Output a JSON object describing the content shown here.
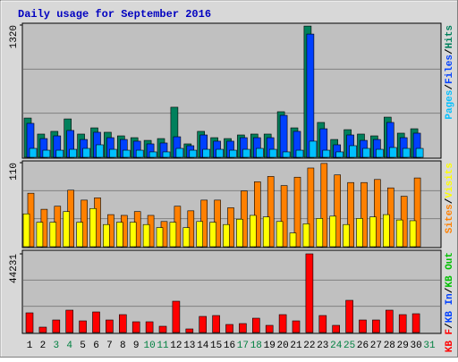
{
  "chart_data": [
    {
      "type": "bar",
      "title": "Daily usage for September 2016",
      "categories": [
        "1",
        "2",
        "3",
        "4",
        "5",
        "6",
        "7",
        "8",
        "9",
        "10",
        "11",
        "12",
        "13",
        "14",
        "15",
        "16",
        "17",
        "18",
        "19",
        "20",
        "21",
        "22",
        "23",
        "24",
        "25",
        "26",
        "27",
        "28",
        "29",
        "30",
        "31"
      ],
      "category_colors": [
        "#000000",
        "#000000",
        "#008040",
        "#008040",
        "#000000",
        "#000000",
        "#000000",
        "#000000",
        "#000000",
        "#008040",
        "#008040",
        "#000000",
        "#000000",
        "#000000",
        "#000000",
        "#000000",
        "#008040",
        "#008040",
        "#000000",
        "#000000",
        "#000000",
        "#000000",
        "#000000",
        "#008040",
        "#008040",
        "#000000",
        "#000000",
        "#000000",
        "#000000",
        "#000000",
        "#008040"
      ],
      "legend_separator": "/",
      "ylim": [
        0,
        1320
      ],
      "yticks": [
        1320
      ],
      "series": [
        {
          "name": "Hits",
          "color": "#00805c",
          "values": [
            392,
            232,
            259,
            383,
            232,
            294,
            250,
            214,
            196,
            169,
            187,
            500,
            134,
            259,
            196,
            187,
            223,
            232,
            232,
            455,
            294,
            1310,
            348,
            178,
            276,
            232,
            214,
            401,
            241,
            285,
            null
          ]
        },
        {
          "name": "Files",
          "color": "#0040ff",
          "values": [
            339,
            187,
            214,
            268,
            178,
            250,
            196,
            178,
            161,
            134,
            143,
            205,
            116,
            223,
            161,
            161,
            196,
            196,
            196,
            419,
            259,
            1230,
            285,
            125,
            223,
            169,
            178,
            348,
            196,
            241,
            null
          ]
        },
        {
          "name": "Pages",
          "color": "#00c0ff",
          "values": [
            89,
            71,
            71,
            80,
            89,
            125,
            80,
            71,
            71,
            54,
            54,
            89,
            71,
            80,
            80,
            71,
            80,
            89,
            80,
            54,
            71,
            161,
            71,
            54,
            116,
            89,
            80,
            98,
            89,
            89,
            null
          ]
        }
      ]
    },
    {
      "type": "bar",
      "ylim": [
        0,
        110
      ],
      "yticks": [
        110
      ],
      "series": [
        {
          "name": "Visits",
          "color": "#ffff00",
          "values": [
            43,
            32,
            32,
            46,
            32,
            50,
            29,
            32,
            32,
            29,
            25,
            32,
            25,
            33,
            32,
            29,
            36,
            41,
            39,
            33,
            18,
            30,
            37,
            40,
            29,
            37,
            39,
            42,
            35,
            34,
            null
          ]
        },
        {
          "name": "Sites",
          "color": "#ff8000",
          "values": [
            70,
            49,
            53,
            74,
            61,
            64,
            42,
            41,
            46,
            41,
            33,
            53,
            47,
            61,
            61,
            51,
            73,
            85,
            92,
            80,
            91,
            103,
            109,
            94,
            84,
            84,
            88,
            77,
            66,
            90,
            null
          ]
        }
      ]
    },
    {
      "type": "bar",
      "ylim": [
        0,
        44231
      ],
      "yticks": [
        44231
      ],
      "series": [
        {
          "name": "KB Out",
          "color": "#00c000",
          "values": [
            0,
            0,
            0,
            0,
            0,
            0,
            0,
            0,
            0,
            0,
            0,
            0,
            0,
            0,
            0,
            0,
            0,
            0,
            0,
            0,
            0,
            0,
            0,
            0,
            0,
            0,
            0,
            0,
            0,
            0,
            null
          ]
        },
        {
          "name": "KB In",
          "color": "#0040ff",
          "values": [
            0,
            0,
            0,
            0,
            0,
            0,
            0,
            0,
            0,
            0,
            0,
            0,
            0,
            0,
            0,
            0,
            0,
            0,
            0,
            0,
            0,
            0,
            0,
            0,
            0,
            0,
            0,
            0,
            0,
            0,
            null
          ]
        },
        {
          "name": "KB F",
          "color": "#ff0000",
          "values": [
            11058,
            3016,
            7037,
            12566,
            6534,
            11560,
            7037,
            10052,
            6031,
            6031,
            3518,
            17591,
            2010,
            9047,
            9550,
            4524,
            5026,
            8042,
            4021,
            10052,
            6534,
            44231,
            9550,
            4021,
            18094,
            7037,
            7037,
            12566,
            10052,
            10555,
            null
          ]
        }
      ]
    }
  ]
}
